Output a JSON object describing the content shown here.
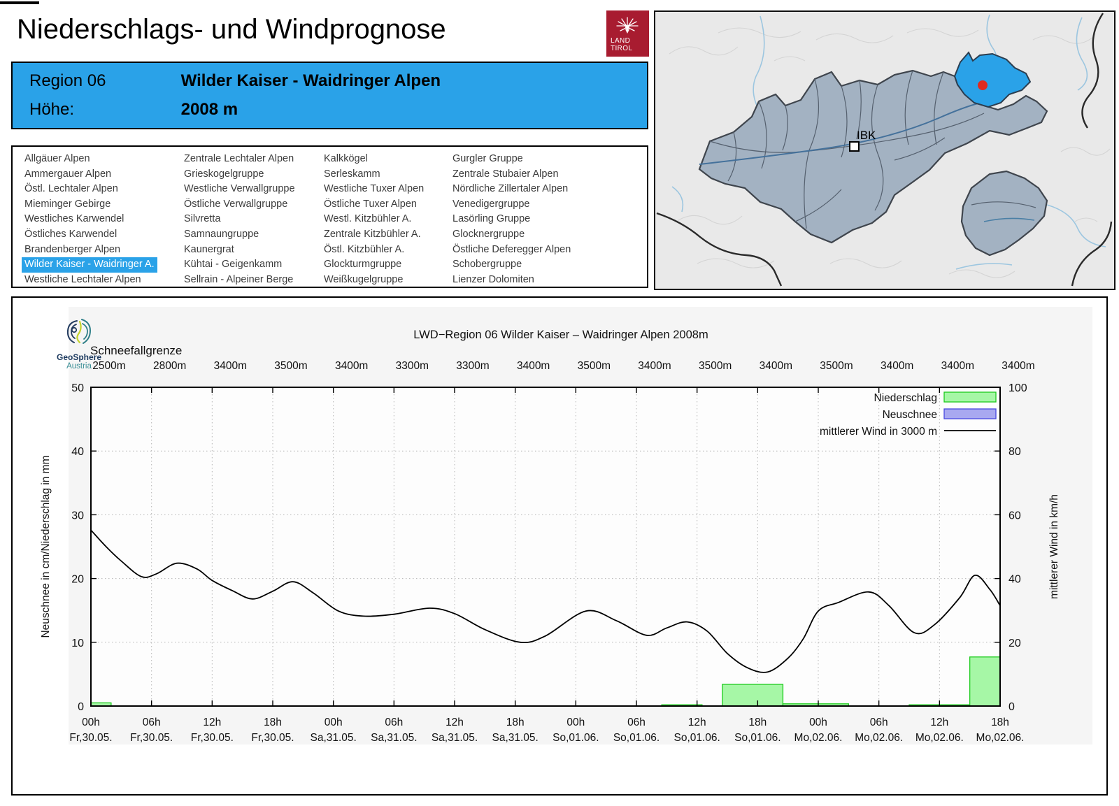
{
  "header": {
    "title": "Niederschlags- und Windprognose",
    "logo": {
      "line1": "LAND",
      "line2": "TIROL"
    }
  },
  "region_box": {
    "region_label": "Region 06",
    "region_name": "Wilder Kaiser - Waidringer Alpen",
    "hoehe_label": "Höhe:",
    "hoehe_value": "2008 m"
  },
  "region_list": {
    "selected": "Wilder Kaiser - Waidringer A.",
    "columns": [
      [
        "Allgäuer Alpen",
        "Ammergauer Alpen",
        "Östl. Lechtaler Alpen",
        "Mieminger Gebirge",
        "Westliches Karwendel",
        "Östliches Karwendel",
        "Brandenberger Alpen",
        "Wilder Kaiser - Waidringer A.",
        "Westliche Lechtaler Alpen"
      ],
      [
        "Zentrale Lechtaler Alpen",
        "Grieskogelgruppe",
        "Westliche Verwallgruppe",
        "Östliche Verwallgruppe",
        "Silvretta",
        "Samnaungruppe",
        "Kaunergrat",
        "Kühtai - Geigenkamm",
        "Sellrain - Alpeiner Berge"
      ],
      [
        "Kalkkögel",
        "Serleskamm",
        "Westliche Tuxer Alpen",
        "Östliche Tuxer Alpen",
        "Westl. Kitzbühler A.",
        "Zentrale Kitzbühler A.",
        "Östl. Kitzbühler A.",
        "Glockturmgruppe",
        "Weißkugelgruppe"
      ],
      [
        "Gurgler Gruppe",
        "Zentrale Stubaier Alpen",
        "Nördliche Zillertaler Alpen",
        "Venedigergruppe",
        "Lasörling Gruppe",
        "Glocknergruppe",
        "Östliche Deferegger Alpen",
        "Schobergruppe",
        "Lienzer Dolomiten"
      ]
    ]
  },
  "map": {
    "city_label": "IBK",
    "highlight_color": "#2aa2e8",
    "marker_color": "#e02a20",
    "region_fill": "#a3b2c2"
  },
  "geosphere": {
    "name": "GeoSphere",
    "sub": "Austria"
  },
  "chart_data": {
    "type": "line",
    "title": "LWD−Region 06 Wilder Kaiser – Waidringer Alpen 2008m",
    "snowline": {
      "label": "Schneefallgrenze",
      "values": [
        "2500m",
        "2800m",
        "3400m",
        "3500m",
        "3400m",
        "3300m",
        "3300m",
        "3400m",
        "3500m",
        "3400m",
        "3500m",
        "3400m",
        "3500m",
        "3400m",
        "3400m",
        "3400m"
      ]
    },
    "x_ticks": [
      {
        "time": "00h",
        "date": "Fr,30.05."
      },
      {
        "time": "06h",
        "date": "Fr,30.05."
      },
      {
        "time": "12h",
        "date": "Fr,30.05."
      },
      {
        "time": "18h",
        "date": "Fr,30.05."
      },
      {
        "time": "00h",
        "date": "Sa,31.05."
      },
      {
        "time": "06h",
        "date": "Sa,31.05."
      },
      {
        "time": "12h",
        "date": "Sa,31.05."
      },
      {
        "time": "18h",
        "date": "Sa,31.05."
      },
      {
        "time": "00h",
        "date": "So,01.06."
      },
      {
        "time": "06h",
        "date": "So,01.06."
      },
      {
        "time": "12h",
        "date": "So,01.06."
      },
      {
        "time": "18h",
        "date": "So,01.06."
      },
      {
        "time": "00h",
        "date": "Mo,02.06."
      },
      {
        "time": "06h",
        "date": "Mo,02.06."
      },
      {
        "time": "12h",
        "date": "Mo,02.06."
      },
      {
        "time": "18h",
        "date": "Mo,02.06."
      }
    ],
    "x_hours_range": [
      0,
      90
    ],
    "left_axis": {
      "label": "Neuschnee in cm/Niederschlag in mm",
      "range": [
        0,
        50
      ],
      "ticks": [
        0,
        10,
        20,
        30,
        40,
        50
      ]
    },
    "right_axis": {
      "label": "mittlerer Wind in km/h",
      "range": [
        0,
        100
      ],
      "ticks": [
        0,
        20,
        40,
        60,
        80,
        100
      ]
    },
    "grid": "dotted, every 6h vertical, every 10 units horizontal",
    "legend": [
      {
        "label": "Niederschlag",
        "type": "box",
        "fill": "#a6f7a6",
        "stroke": "#1ecb1e"
      },
      {
        "label": "Neuschnee",
        "type": "box",
        "fill": "#a8a8f0",
        "stroke": "#4848e0"
      },
      {
        "label": "mittlerer Wind in 3000 m",
        "type": "line",
        "stroke": "#000000"
      }
    ],
    "series": [
      {
        "name": "Niederschlag (mm, left axis)",
        "type": "bar",
        "bars": [
          {
            "from_h": 0,
            "to_h": 2,
            "mm": 0.5
          },
          {
            "from_h": 56.5,
            "to_h": 60.5,
            "mm": 0.2
          },
          {
            "from_h": 62.5,
            "to_h": 68.5,
            "mm": 3.4
          },
          {
            "from_h": 68.5,
            "to_h": 75,
            "mm": 0.35
          },
          {
            "from_h": 81,
            "to_h": 87,
            "mm": 0.2
          },
          {
            "from_h": 87,
            "to_h": 90,
            "mm": 7.7
          }
        ]
      },
      {
        "name": "Neuschnee (cm, left axis)",
        "type": "bar",
        "bars": []
      },
      {
        "name": "mittlerer Wind in 3000 m (km/h, right axis)",
        "type": "line",
        "points_h_kmh": [
          [
            0,
            55.2
          ],
          [
            1.5,
            50
          ],
          [
            3,
            45.5
          ],
          [
            5,
            40.6
          ],
          [
            6.5,
            41.5
          ],
          [
            8.5,
            44.8
          ],
          [
            10.5,
            43
          ],
          [
            12,
            39.4
          ],
          [
            14,
            36.2
          ],
          [
            16,
            33.6
          ],
          [
            18,
            36
          ],
          [
            20,
            39
          ],
          [
            22,
            35.5
          ],
          [
            24.5,
            29.8
          ],
          [
            27,
            28.2
          ],
          [
            30,
            28.8
          ],
          [
            33.5,
            30.7
          ],
          [
            36,
            29
          ],
          [
            39,
            24
          ],
          [
            42.5,
            20
          ],
          [
            45,
            22
          ],
          [
            49,
            29.8
          ],
          [
            52,
            26.8
          ],
          [
            55,
            22.2
          ],
          [
            57,
            24.5
          ],
          [
            59,
            26.4
          ],
          [
            61,
            23.5
          ],
          [
            63,
            16.5
          ],
          [
            65,
            12
          ],
          [
            67,
            10.7
          ],
          [
            69,
            15
          ],
          [
            70.5,
            21
          ],
          [
            72,
            29.8
          ],
          [
            74,
            32.5
          ],
          [
            77,
            35.8
          ],
          [
            79,
            31.5
          ],
          [
            81.5,
            23
          ],
          [
            83.5,
            25.5
          ],
          [
            86,
            34
          ],
          [
            87.5,
            41
          ],
          [
            89,
            36.5
          ],
          [
            90,
            31.5
          ]
        ]
      }
    ]
  }
}
